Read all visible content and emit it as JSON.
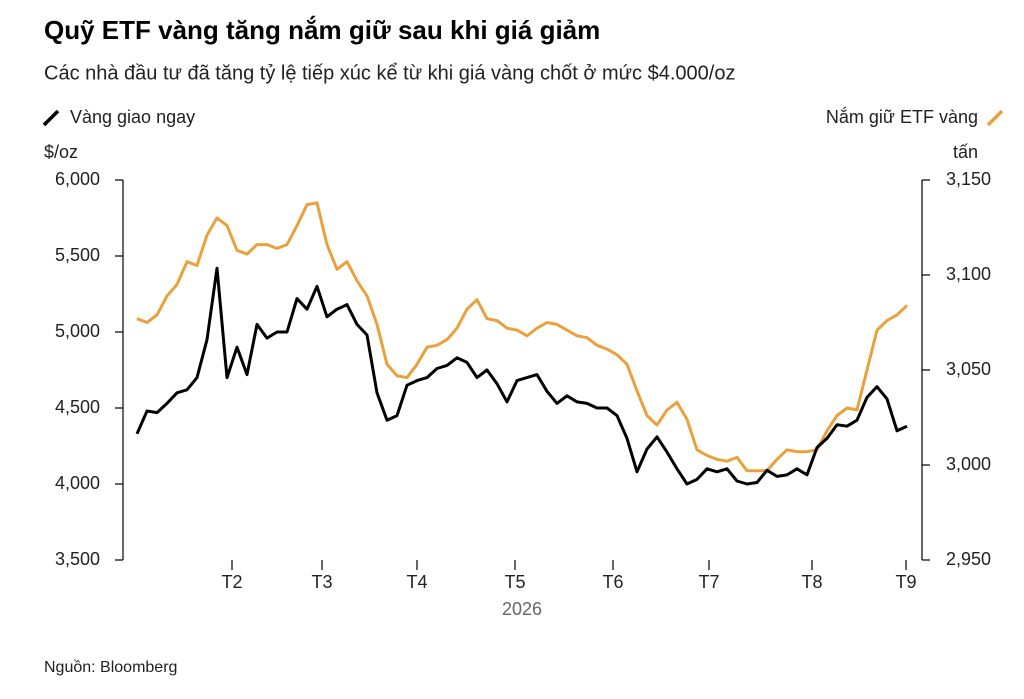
{
  "chart_data": {
    "type": "line",
    "title": "Quỹ ETF vàng tăng nắm giữ sau khi giá giảm",
    "subtitle": "Các nhà đầu tư đã tăng tỷ lệ tiếp xúc kể từ khi giá vàng chốt ở mức $4.000/oz",
    "y_label": "$/oz",
    "y2_label": "tấn",
    "x_label": "2026",
    "source": "Nguồn: Bloomberg",
    "x": [
      0,
      1,
      2,
      3,
      4,
      5,
      6,
      7,
      8,
      9,
      10,
      11,
      12,
      13,
      14,
      15,
      16,
      17,
      18,
      19,
      20,
      21,
      22,
      23,
      24,
      25,
      26,
      27,
      28,
      29,
      30,
      31,
      32,
      33,
      34,
      35,
      36,
      37,
      38,
      39,
      40,
      41,
      42,
      43,
      44,
      45,
      46,
      47,
      48,
      49,
      50,
      51,
      52,
      53,
      54,
      55,
      56,
      57,
      58,
      59,
      60,
      61,
      62,
      63,
      64,
      65,
      66,
      67,
      68,
      69,
      70,
      71,
      72,
      73,
      74,
      75,
      76,
      77
    ],
    "xlim": [
      -1.2,
      77.8
    ],
    "xticks": [
      {
        "value": 9.5,
        "label": "T2"
      },
      {
        "value": 18.5,
        "label": "T3"
      },
      {
        "value": 28,
        "label": "T4"
      },
      {
        "value": 37.8,
        "label": "T5"
      },
      {
        "value": 47.6,
        "label": "T6"
      },
      {
        "value": 57.2,
        "label": "T7"
      },
      {
        "value": 67.5,
        "label": "T8"
      },
      {
        "value": 76.9,
        "label": "T9"
      }
    ],
    "ylim": [
      3500,
      6000
    ],
    "yticks": [
      {
        "value": 3500,
        "label": "3,500"
      },
      {
        "value": 4000,
        "label": "4,000"
      },
      {
        "value": 4500,
        "label": "4,500"
      },
      {
        "value": 5000,
        "label": "5,000"
      },
      {
        "value": 5500,
        "label": "5,500"
      },
      {
        "value": 6000,
        "label": "6,000"
      }
    ],
    "y2lim": [
      2950,
      3150
    ],
    "y2ticks": [
      {
        "value": 2950,
        "label": "2,950"
      },
      {
        "value": 3000,
        "label": "3,000"
      },
      {
        "value": 3050,
        "label": "3,050"
      },
      {
        "value": 3100,
        "label": "3,100"
      },
      {
        "value": 3150,
        "label": "3,150"
      }
    ],
    "series": [
      {
        "name": "Vàng giao ngay",
        "color": "#000000",
        "axis": "y",
        "values": [
          4330,
          4480,
          4470,
          4530,
          4600,
          4620,
          4700,
          4950,
          5420,
          4700,
          4900,
          4720,
          5050,
          4960,
          5000,
          5000,
          5220,
          5150,
          5300,
          5100,
          5150,
          5180,
          5050,
          4980,
          4600,
          4420,
          4450,
          4650,
          4680,
          4700,
          4760,
          4780,
          4830,
          4800,
          4700,
          4750,
          4660,
          4540,
          4680,
          4700,
          4720,
          4610,
          4530,
          4580,
          4540,
          4530,
          4500,
          4500,
          4450,
          4300,
          4080,
          4230,
          4310,
          4210,
          4100,
          4000,
          4030,
          4100,
          4080,
          4100,
          4020,
          4000,
          4010,
          4090,
          4050,
          4060,
          4100,
          4060,
          4240,
          4300,
          4390,
          4380,
          4420,
          4570,
          4640,
          4560,
          4350,
          4380
        ]
      },
      {
        "name": "Nắm giữ ETF vàng",
        "color": "#e8a13c",
        "axis": "y2",
        "values": [
          3077,
          3075,
          3079,
          3089,
          3095,
          3107,
          3105,
          3121,
          3130,
          3126,
          3113,
          3111,
          3116,
          3116,
          3114,
          3116,
          3126,
          3137,
          3138,
          3116,
          3103,
          3107,
          3097,
          3089,
          3074,
          3053,
          3047,
          3046,
          3053,
          3062,
          3063,
          3066,
          3072,
          3082,
          3087,
          3077,
          3076,
          3072,
          3071,
          3068,
          3072,
          3075,
          3074,
          3071,
          3068,
          3067,
          3063,
          3061,
          3058,
          3053,
          3039,
          3026,
          3021,
          3029,
          3033,
          3024,
          3008,
          3005,
          3003,
          3002,
          3004,
          2997,
          2997,
          2997,
          3003,
          3008,
          3007,
          3007,
          3008,
          3018,
          3026,
          3030,
          3029,
          3050,
          3071,
          3076,
          3079,
          3084
        ]
      }
    ]
  }
}
